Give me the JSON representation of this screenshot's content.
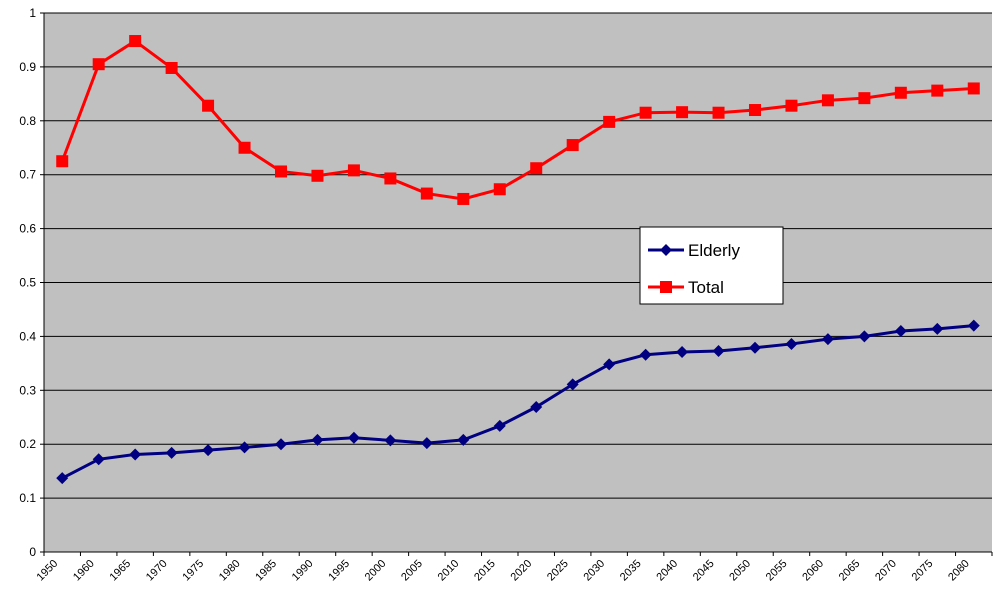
{
  "chart_data": {
    "type": "line",
    "categories": [
      "1950",
      "1960",
      "1965",
      "1970",
      "1975",
      "1980",
      "1985",
      "1990",
      "1995",
      "2000",
      "2005",
      "2010",
      "2015",
      "2020",
      "2025",
      "2030",
      "2035",
      "2040",
      "2045",
      "2050",
      "2055",
      "2060",
      "2065",
      "2070",
      "2075",
      "2080"
    ],
    "series": [
      {
        "name": "Elderly",
        "color": "#000080",
        "marker": "diamond",
        "values": [
          0.137,
          0.172,
          0.181,
          0.184,
          0.189,
          0.194,
          0.2,
          0.208,
          0.212,
          0.207,
          0.202,
          0.208,
          0.234,
          0.269,
          0.311,
          0.348,
          0.366,
          0.371,
          0.373,
          0.379,
          0.386,
          0.395,
          0.4,
          0.41,
          0.414,
          0.42
        ]
      },
      {
        "name": "Total",
        "color": "#ff0000",
        "marker": "square",
        "values": [
          0.725,
          0.905,
          0.948,
          0.898,
          0.828,
          0.75,
          0.706,
          0.698,
          0.708,
          0.693,
          0.665,
          0.655,
          0.673,
          0.712,
          0.755,
          0.798,
          0.815,
          0.816,
          0.815,
          0.82,
          0.828,
          0.838,
          0.842,
          0.852,
          0.856,
          0.86
        ]
      }
    ],
    "ylim": [
      0,
      1
    ],
    "yticks": [
      0,
      0.1,
      0.2,
      0.3,
      0.4,
      0.5,
      0.6,
      0.7,
      0.8,
      0.9,
      1
    ],
    "grid": true
  }
}
